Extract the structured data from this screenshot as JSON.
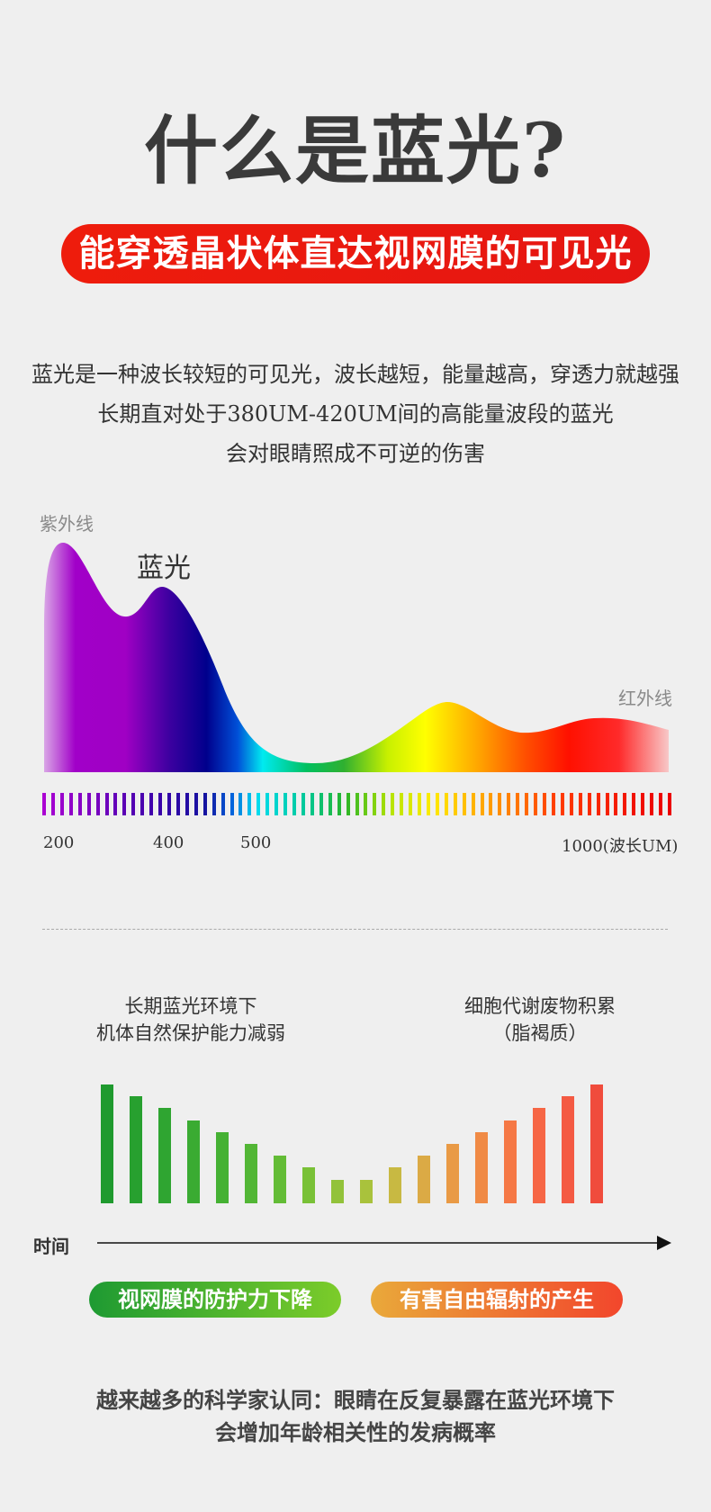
{
  "title": "什么是蓝光?",
  "subtitle_pill": "能穿透晶状体直达视网膜的可见光",
  "description": [
    "蓝光是一种波长较短的可见光，波长越短，能量越高，穿透力就越强",
    "长期直对处于380UM-420UM间的高能量波段的蓝光",
    "会对眼睛照成不可逆的伤害"
  ],
  "spectrum": {
    "uv_label": "紫外线",
    "blue_label": "蓝光",
    "ir_label": "红外线",
    "ticks": [
      "200",
      "400",
      "500",
      "1000(波长UM)"
    ]
  },
  "time_chart": {
    "left_caption": [
      "长期蓝光环境下",
      "机体自然保护能力减弱"
    ],
    "right_caption": [
      "细胞代谢废物积累",
      "（脂褐质）"
    ],
    "axis_label": "时间",
    "bar_levels": [
      1.0,
      0.9,
      0.8,
      0.7,
      0.6,
      0.5,
      0.4,
      0.3,
      0.2,
      0.2,
      0.3,
      0.4,
      0.5,
      0.6,
      0.7,
      0.8,
      0.9,
      1.0
    ],
    "bar_colors": [
      "#1f9a2e",
      "#27a02f",
      "#2fa531",
      "#3aab32",
      "#45b133",
      "#52b635",
      "#63bc36",
      "#79c137",
      "#92c23a",
      "#a9c23c",
      "#c8b942",
      "#dbaa45",
      "#e99a45",
      "#f08a45",
      "#f57845",
      "#f66645",
      "#f45a43",
      "#f04c3c"
    ]
  },
  "pills": {
    "green": "视网膜的防护力下降",
    "orange": "有害自由辐射的产生"
  },
  "bottom": [
    "越来越多的科学家认同：眼睛在反复暴露在蓝光环境下",
    "会增加年龄相关性的发病概率"
  ],
  "colors": {
    "red_pill": "#ea1a10",
    "green": "#1f9a2e",
    "orange": "#f04c3c"
  }
}
